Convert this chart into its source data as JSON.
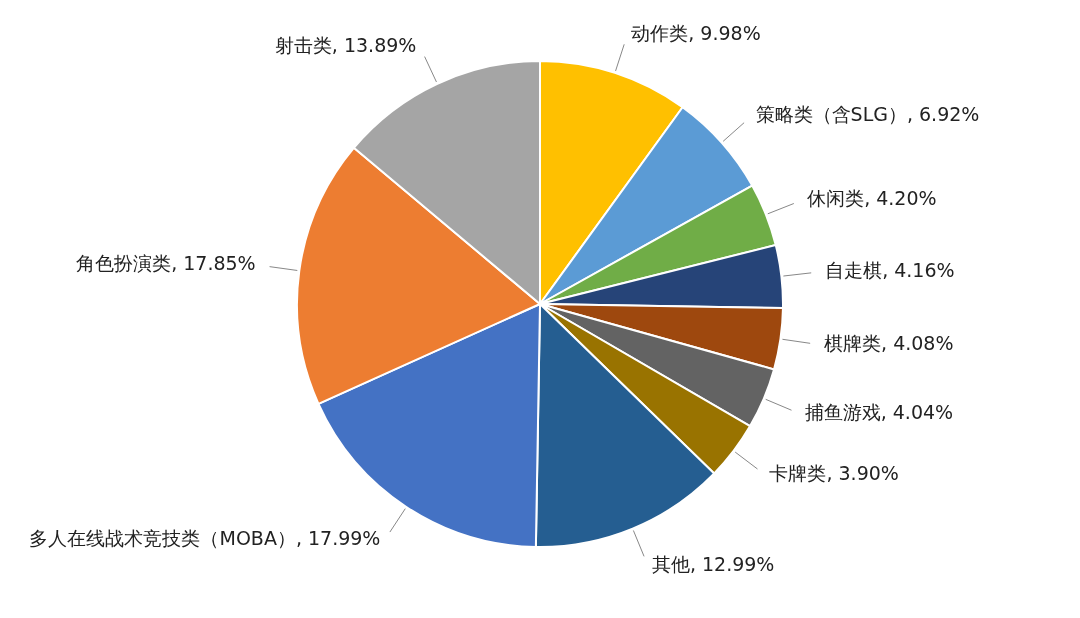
{
  "chart_data": {
    "type": "pie",
    "categories": [
      "动作类",
      "策略类（含SLG）",
      "休闲类",
      "自走棋",
      "棋牌类",
      "捕鱼游戏",
      "卡牌类",
      "其他",
      "多人在线战术竞技类（MOBA）",
      "角色扮演类",
      "射击类"
    ],
    "values": [
      9.98,
      6.92,
      4.2,
      4.16,
      4.08,
      4.04,
      3.9,
      12.99,
      17.99,
      17.85,
      13.89
    ],
    "value_labels": [
      "9.98%",
      "6.92%",
      "4.20%",
      "4.16%",
      "4.08%",
      "4.04%",
      "3.90%",
      "12.99%",
      "17.99%",
      "17.85%",
      "13.89%"
    ],
    "colors": [
      "#ffc000",
      "#5b9bd5",
      "#70ad47",
      "#264478",
      "#9e480e",
      "#636363",
      "#997300",
      "#255e91",
      "#4472c4",
      "#ed7d31",
      "#a5a5a5"
    ]
  }
}
